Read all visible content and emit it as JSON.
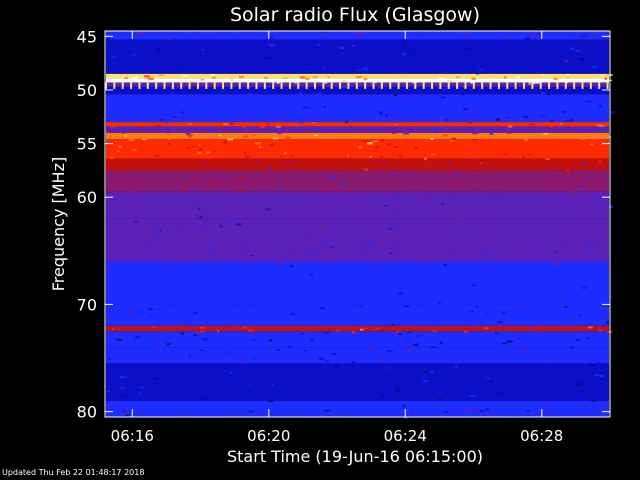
{
  "chart_data": {
    "type": "heatmap",
    "title": "Solar radio Flux (Glasgow)",
    "xlabel": "Start Time (19-Jun-16 06:15:00)",
    "ylabel_main": "Frequency ",
    "ylabel_unit": "[MHz]",
    "xlim_minutes": [
      6.25,
      6.5
    ],
    "x_ticks": [
      "06:16",
      "06:20",
      "06:24",
      "06:28"
    ],
    "x_tick_values_min": [
      376,
      380,
      384,
      388
    ],
    "x_range_min": [
      375.2,
      390.0
    ],
    "ylim": [
      44.5,
      80.5
    ],
    "y_ticks": [
      45,
      50,
      55,
      60,
      70,
      80
    ],
    "colormap": [
      "#0a0a6a",
      "#0b10c8",
      "#1e2cff",
      "#5a20b8",
      "#8a1a70",
      "#c01010",
      "#ff2a00",
      "#ff7a10",
      "#ffe060",
      "#ffffff"
    ],
    "bands": [
      {
        "f0": 44.5,
        "f1": 45.3,
        "level": 0.25
      },
      {
        "f0": 45.3,
        "f1": 48.5,
        "level": 0.15
      },
      {
        "f0": 48.5,
        "f1": 48.9,
        "level": 0.85
      },
      {
        "f0": 48.9,
        "f1": 49.3,
        "level": 1.0
      },
      {
        "f0": 49.3,
        "f1": 49.7,
        "level": 0.3
      },
      {
        "f0": 49.7,
        "f1": 50.4,
        "level": 0.1
      },
      {
        "f0": 50.4,
        "f1": 52.2,
        "level": 0.18
      },
      {
        "f0": 52.2,
        "f1": 53.0,
        "level": 0.22
      },
      {
        "f0": 53.0,
        "f1": 53.4,
        "level": 0.65
      },
      {
        "f0": 53.4,
        "f1": 54.0,
        "level": 0.35
      },
      {
        "f0": 54.0,
        "f1": 54.6,
        "level": 0.75
      },
      {
        "f0": 54.6,
        "f1": 55.6,
        "level": 0.7
      },
      {
        "f0": 55.6,
        "f1": 56.4,
        "level": 0.65
      },
      {
        "f0": 56.4,
        "f1": 57.5,
        "level": 0.5
      },
      {
        "f0": 57.5,
        "f1": 59.5,
        "level": 0.42
      },
      {
        "f0": 59.5,
        "f1": 62.0,
        "level": 0.3
      },
      {
        "f0": 62.0,
        "f1": 66.0,
        "level": 0.28
      },
      {
        "f0": 66.0,
        "f1": 70.0,
        "level": 0.25
      },
      {
        "f0": 70.0,
        "f1": 72.0,
        "level": 0.2
      },
      {
        "f0": 72.0,
        "f1": 72.5,
        "level": 0.6
      },
      {
        "f0": 72.5,
        "f1": 74.0,
        "level": 0.18
      },
      {
        "f0": 74.0,
        "f1": 75.5,
        "level": 0.24
      },
      {
        "f0": 75.5,
        "f1": 79.0,
        "level": 0.1
      },
      {
        "f0": 79.0,
        "f1": 80.5,
        "level": 0.25
      }
    ]
  },
  "footer": {
    "updated": "Updated Thu Feb 22 01:48:17 2018"
  }
}
